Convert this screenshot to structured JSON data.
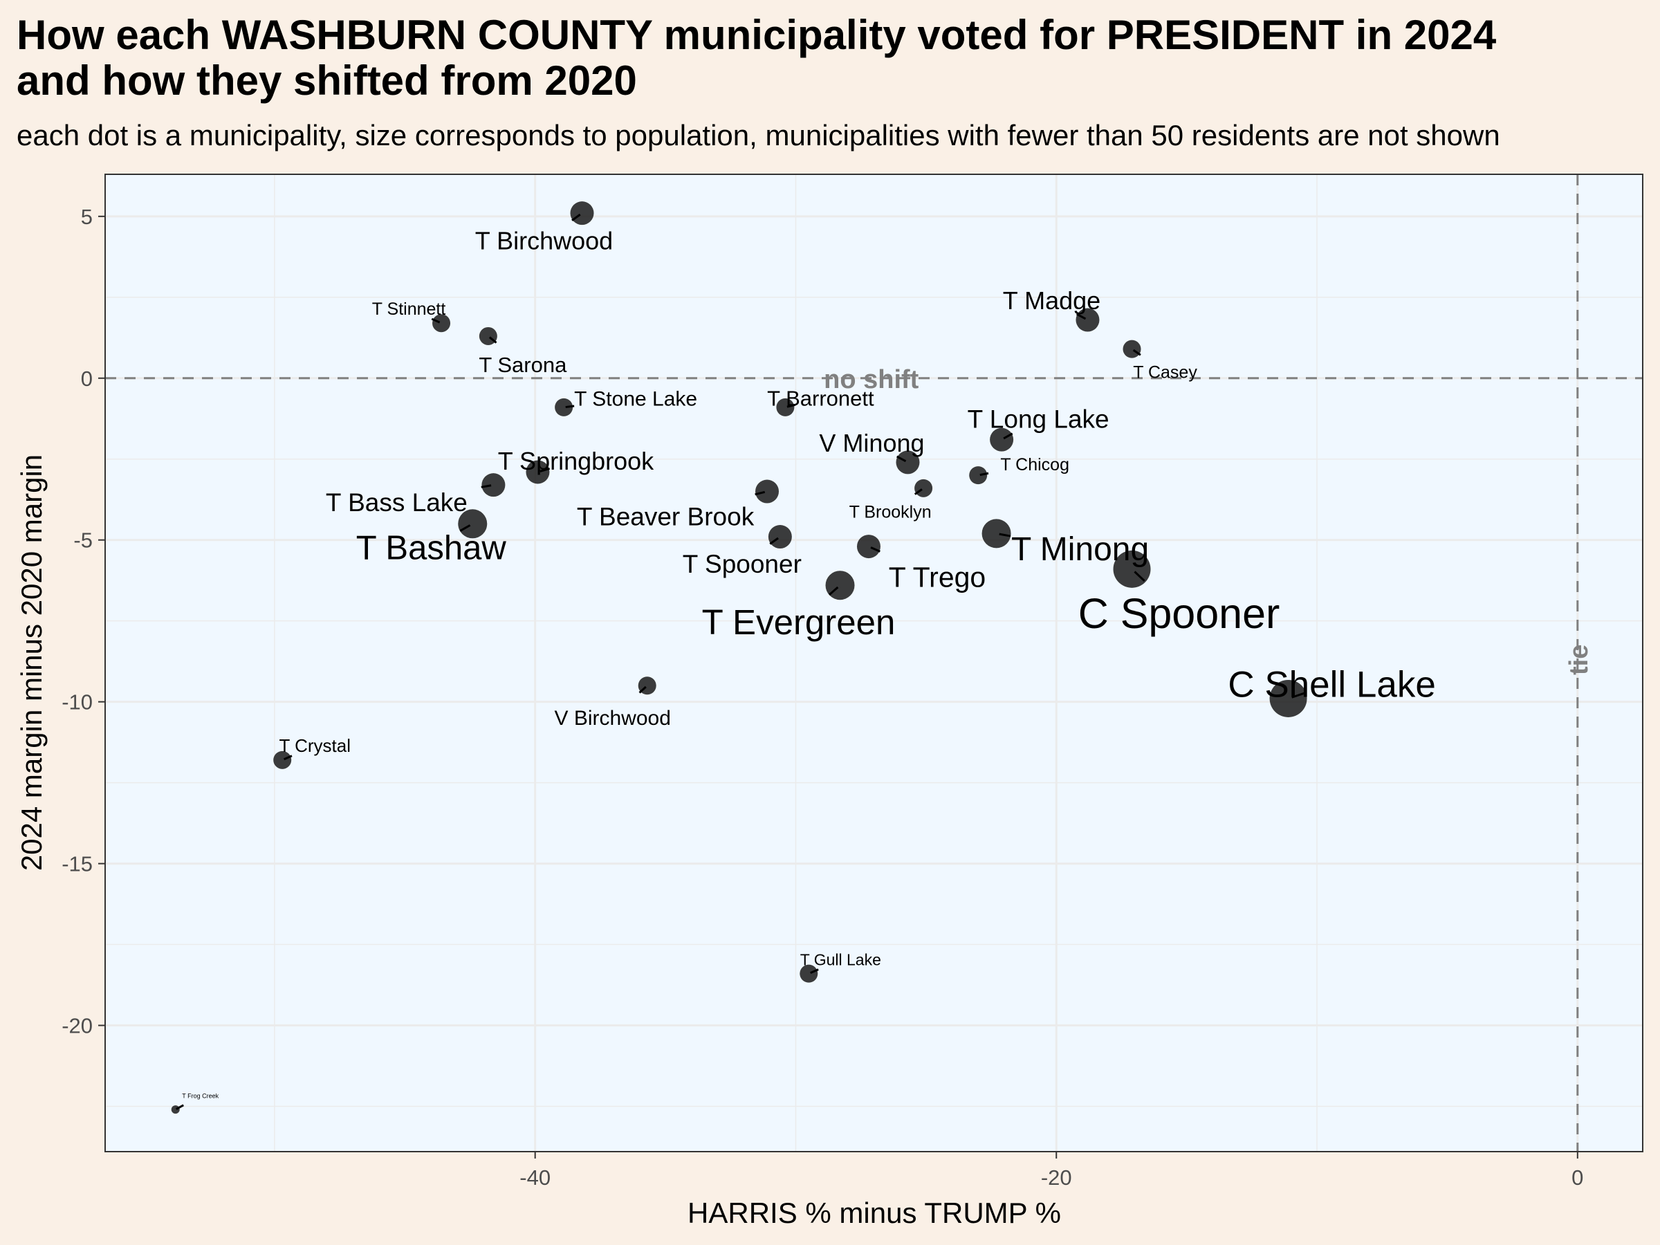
{
  "title": "How each WASHBURN COUNTY municipality voted for PRESIDENT in 2024\nand how they shifted from 2020",
  "subtitle": "each dot is a municipality, size corresponds to population, municipalities with fewer than 50 residents are not shown",
  "colors": {
    "page_background": "#faf0e6",
    "panel_background": "#f0f8ff",
    "point": "#1a1a1a",
    "grid": "#ebebeb",
    "reference_line": "#808080"
  },
  "chart_data": {
    "type": "scatter",
    "xlabel": "HARRIS % minus TRUMP %",
    "ylabel": "2024 margin minus 2020 margin",
    "xlim": [
      -56.5,
      2.5
    ],
    "ylim": [
      -23.9,
      6.3
    ],
    "x_ticks": [
      -40,
      -20,
      0
    ],
    "x_tick_labels": [
      "-40",
      "-20",
      "0"
    ],
    "y_ticks": [
      5,
      0,
      -5,
      -10,
      -15,
      -20
    ],
    "y_tick_labels": [
      "5",
      "0",
      "-5",
      "-10",
      "-15",
      "-20"
    ],
    "grid": true,
    "reference_lines": [
      {
        "axis": "y",
        "value": 0,
        "label": "no shift"
      },
      {
        "axis": "x",
        "value": 0,
        "label": "tie"
      }
    ],
    "points": [
      {
        "name": "T Birchwood",
        "x": -38.2,
        "y": 5.1,
        "size": 3
      },
      {
        "name": "T Stinnett",
        "x": -43.6,
        "y": 1.7,
        "size": 2
      },
      {
        "name": "T Sarona",
        "x": -41.8,
        "y": 1.3,
        "size": 2
      },
      {
        "name": "T Madge",
        "x": -18.8,
        "y": 1.8,
        "size": 3
      },
      {
        "name": "T Casey",
        "x": -17.1,
        "y": 0.9,
        "size": 2
      },
      {
        "name": "T Stone Lake",
        "x": -38.9,
        "y": -0.9,
        "size": 2
      },
      {
        "name": "T Barronett",
        "x": -30.4,
        "y": -0.9,
        "size": 2
      },
      {
        "name": "T Long Lake",
        "x": -22.1,
        "y": -1.9,
        "size": 3
      },
      {
        "name": "T Chicog",
        "x": -23.0,
        "y": -3.0,
        "size": 2
      },
      {
        "name": "V Minong",
        "x": -25.7,
        "y": -2.6,
        "size": 3
      },
      {
        "name": "T Brooklyn",
        "x": -25.1,
        "y": -3.4,
        "size": 2
      },
      {
        "name": "T Springbrook",
        "x": -39.9,
        "y": -2.9,
        "size": 3
      },
      {
        "name": "T Bass Lake",
        "x": -41.6,
        "y": -3.3,
        "size": 3
      },
      {
        "name": "T Bashaw",
        "x": -42.4,
        "y": -4.5,
        "size": 4
      },
      {
        "name": "T Beaver Brook",
        "x": -31.1,
        "y": -3.5,
        "size": 3
      },
      {
        "name": "T Spooner",
        "x": -30.6,
        "y": -4.9,
        "size": 3
      },
      {
        "name": "T Trego",
        "x": -27.2,
        "y": -5.2,
        "size": 3
      },
      {
        "name": "T Evergreen",
        "x": -28.3,
        "y": -6.4,
        "size": 4
      },
      {
        "name": "T Minong",
        "x": -22.3,
        "y": -4.8,
        "size": 4
      },
      {
        "name": "C Spooner",
        "x": -17.1,
        "y": -5.9,
        "size": 5
      },
      {
        "name": "C Shell Lake",
        "x": -11.1,
        "y": -9.9,
        "size": 5
      },
      {
        "name": "V Birchwood",
        "x": -35.7,
        "y": -9.5,
        "size": 2
      },
      {
        "name": "T Crystal",
        "x": -49.7,
        "y": -11.8,
        "size": 2
      },
      {
        "name": "T Gull Lake",
        "x": -29.5,
        "y": -18.4,
        "size": 2
      },
      {
        "name": "T Frog Creek",
        "x": -53.8,
        "y": -22.6,
        "size": 1
      }
    ]
  }
}
